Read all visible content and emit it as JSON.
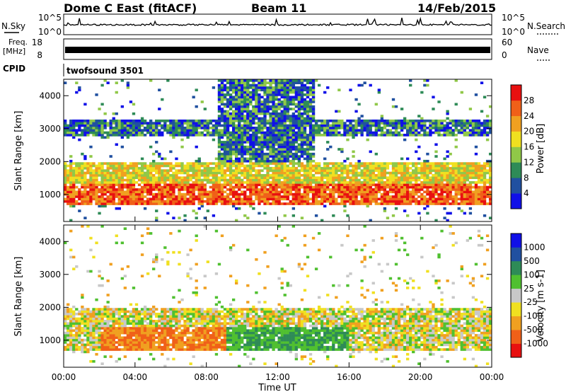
{
  "header": {
    "station": "Dome C East (fitACF)",
    "beam": "Beam 11",
    "date": "14/Feb/2015"
  },
  "nsky_panel": {
    "left_label": "N.Sky",
    "right_label": "N.Search",
    "ticks_left": [
      "10^5",
      "10^0"
    ],
    "ticks_right": [
      "10^5",
      "10^0"
    ]
  },
  "freq_panel": {
    "left_label_line1": "Freq.",
    "left_label_line2": "[MHz]",
    "right_label": "Nave",
    "ticks_left": [
      "18",
      "8"
    ],
    "ticks_right": [
      "60",
      "0"
    ]
  },
  "cpid_panel": {
    "label": "CPID",
    "value": "twofsound 3501"
  },
  "time_axis": {
    "label": "Time UT",
    "ticks": [
      "00:00",
      "04:00",
      "08:00",
      "12:00",
      "16:00",
      "20:00",
      "00:00"
    ]
  },
  "colors": {
    "power": [
      "#1010e8",
      "#2050a0",
      "#2e8b57",
      "#90c848",
      "#f0e020",
      "#f0a020",
      "#f06018",
      "#e81010"
    ],
    "velocity": [
      "#e81010",
      "#f06018",
      "#f0a020",
      "#f0e020",
      "#c8c8c8",
      "#50c030",
      "#2e8b57",
      "#2050a0",
      "#1010e8"
    ]
  },
  "chart_data": [
    {
      "type": "heatmap",
      "name": "power",
      "ylabel": "Slant Range [km]",
      "ylim": [
        180,
        4500
      ],
      "yticks": [
        1000,
        2000,
        3000,
        4000
      ],
      "xlim_hours": [
        0,
        24
      ],
      "colorbar": {
        "label": "Power [dB]",
        "ticks": [
          "28",
          "24",
          "20",
          "16",
          "12",
          "8",
          "4"
        ],
        "range": [
          0,
          32
        ]
      },
      "echo_regions": [
        {
          "t0": 0,
          "t1": 24,
          "r0": 700,
          "r1": 2000,
          "level": "high"
        },
        {
          "t0": 0,
          "t1": 24,
          "r0": 2800,
          "r1": 3300,
          "level": "low"
        },
        {
          "t0": 8.5,
          "t1": 14,
          "r0": 2000,
          "r1": 4500,
          "level": "mixed"
        }
      ]
    },
    {
      "type": "heatmap",
      "name": "velocity",
      "ylabel": "Slant Range [km]",
      "ylim": [
        180,
        4500
      ],
      "yticks": [
        1000,
        2000,
        3000,
        4000
      ],
      "xlim_hours": [
        0,
        24
      ],
      "colorbar": {
        "label": "Velocity [m s-1]",
        "ticks": [
          "1000",
          "500",
          "100",
          "25",
          "-25",
          "-100",
          "-500",
          "-1000"
        ],
        "range": [
          -1500,
          1500
        ]
      },
      "echo_regions": [
        {
          "t0": 0,
          "t1": 24,
          "r0": 700,
          "r1": 2000,
          "level": "mixed"
        },
        {
          "t0": 2,
          "t1": 9,
          "r0": 700,
          "r1": 1400,
          "level": "negative"
        },
        {
          "t0": 10,
          "t1": 16,
          "r0": 700,
          "r1": 1400,
          "level": "positive"
        }
      ]
    }
  ]
}
